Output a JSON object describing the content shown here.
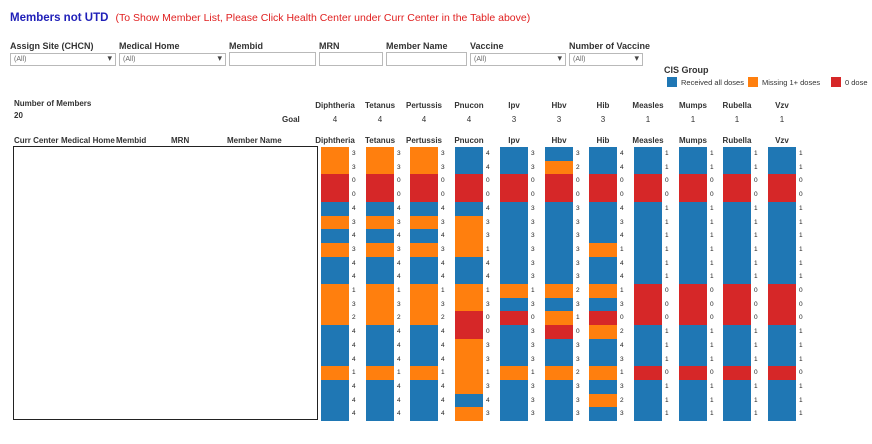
{
  "title": {
    "main": "Members not UTD",
    "note": "(To Show Member List, Please Click Health Center under Curr Center in the Table above)"
  },
  "filters": [
    {
      "label": "Assign Site (CHCN)",
      "value": "(All)",
      "type": "select"
    },
    {
      "label": "Medical Home",
      "value": "(All)",
      "type": "select"
    },
    {
      "label": "Membid",
      "value": "",
      "type": "text"
    },
    {
      "label": "MRN",
      "value": "",
      "type": "text"
    },
    {
      "label": "Member Name",
      "value": "",
      "type": "text"
    },
    {
      "label": "Vaccine",
      "value": "(All)",
      "type": "select"
    },
    {
      "label": "Number of Vaccine",
      "value": "(All)",
      "type": "select"
    }
  ],
  "legend": {
    "title": "CIS Group",
    "items": [
      {
        "label": "Received all doses",
        "color": "#1f77b4"
      },
      {
        "label": "Missing 1+ doses",
        "color": "#ff7f0e"
      },
      {
        "label": "0 dose",
        "color": "#d62728"
      }
    ]
  },
  "summary": {
    "label": "Number of Members",
    "value": "20",
    "goal_label": "Goal"
  },
  "member_columns": [
    "Curr Center",
    "Medical Home",
    "Membid",
    "MRN",
    "Member Name"
  ],
  "colors": {
    "received": "#1f77b4",
    "missing": "#ff7f0e",
    "zero": "#d62728"
  },
  "chart_data": {
    "type": "heatmap",
    "vaccines": [
      {
        "name": "Diphtheria",
        "goal": "4",
        "values": [
          3,
          3,
          0,
          0,
          4,
          3,
          4,
          3,
          4,
          4,
          1,
          3,
          2,
          4,
          4,
          4,
          1,
          4,
          4,
          4
        ],
        "groups": [
          "M",
          "M",
          "Z",
          "Z",
          "R",
          "M",
          "R",
          "M",
          "R",
          "R",
          "M",
          "M",
          "M",
          "R",
          "R",
          "R",
          "M",
          "R",
          "R",
          "R"
        ]
      },
      {
        "name": "Tetanus",
        "goal": "4",
        "values": [
          3,
          3,
          0,
          0,
          4,
          3,
          4,
          3,
          4,
          4,
          1,
          3,
          2,
          4,
          4,
          4,
          1,
          4,
          4,
          4
        ],
        "groups": [
          "M",
          "M",
          "Z",
          "Z",
          "R",
          "M",
          "R",
          "M",
          "R",
          "R",
          "M",
          "M",
          "M",
          "R",
          "R",
          "R",
          "M",
          "R",
          "R",
          "R"
        ]
      },
      {
        "name": "Pertussis",
        "goal": "4",
        "values": [
          3,
          3,
          0,
          0,
          4,
          3,
          4,
          3,
          4,
          4,
          1,
          3,
          2,
          4,
          4,
          4,
          1,
          4,
          4,
          4
        ],
        "groups": [
          "M",
          "M",
          "Z",
          "Z",
          "R",
          "M",
          "R",
          "M",
          "R",
          "R",
          "M",
          "M",
          "M",
          "R",
          "R",
          "R",
          "M",
          "R",
          "R",
          "R"
        ]
      },
      {
        "name": "Pnucon",
        "goal": "4",
        "values": [
          4,
          4,
          0,
          0,
          4,
          3,
          3,
          1,
          4,
          4,
          1,
          3,
          0,
          0,
          3,
          3,
          1,
          3,
          4,
          3
        ],
        "groups": [
          "R",
          "R",
          "Z",
          "Z",
          "R",
          "M",
          "M",
          "M",
          "R",
          "R",
          "M",
          "M",
          "Z",
          "Z",
          "M",
          "M",
          "M",
          "M",
          "R",
          "M"
        ]
      },
      {
        "name": "Ipv",
        "goal": "3",
        "values": [
          3,
          3,
          0,
          0,
          3,
          3,
          3,
          3,
          3,
          3,
          1,
          3,
          0,
          3,
          3,
          3,
          1,
          3,
          3,
          3
        ],
        "groups": [
          "R",
          "R",
          "Z",
          "Z",
          "R",
          "R",
          "R",
          "R",
          "R",
          "R",
          "M",
          "R",
          "Z",
          "R",
          "R",
          "R",
          "M",
          "R",
          "R",
          "R"
        ]
      },
      {
        "name": "Hbv",
        "goal": "3",
        "values": [
          3,
          2,
          0,
          0,
          3,
          3,
          3,
          3,
          3,
          3,
          2,
          3,
          1,
          0,
          3,
          3,
          2,
          3,
          3,
          3
        ],
        "groups": [
          "R",
          "M",
          "Z",
          "Z",
          "R",
          "R",
          "R",
          "R",
          "R",
          "R",
          "M",
          "R",
          "M",
          "Z",
          "R",
          "R",
          "M",
          "R",
          "R",
          "R"
        ]
      },
      {
        "name": "Hib",
        "goal": "3",
        "values": [
          4,
          4,
          0,
          0,
          4,
          3,
          4,
          1,
          4,
          4,
          1,
          3,
          0,
          2,
          4,
          3,
          1,
          3,
          2,
          3
        ],
        "groups": [
          "R",
          "R",
          "Z",
          "Z",
          "R",
          "R",
          "R",
          "M",
          "R",
          "R",
          "M",
          "R",
          "Z",
          "M",
          "R",
          "R",
          "M",
          "R",
          "M",
          "R"
        ]
      },
      {
        "name": "Measles",
        "goal": "1",
        "values": [
          1,
          1,
          0,
          0,
          1,
          1,
          1,
          1,
          1,
          1,
          0,
          0,
          0,
          1,
          1,
          1,
          0,
          1,
          1,
          1
        ],
        "groups": [
          "R",
          "R",
          "Z",
          "Z",
          "R",
          "R",
          "R",
          "R",
          "R",
          "R",
          "Z",
          "Z",
          "Z",
          "R",
          "R",
          "R",
          "Z",
          "R",
          "R",
          "R"
        ]
      },
      {
        "name": "Mumps",
        "goal": "1",
        "values": [
          1,
          1,
          0,
          0,
          1,
          1,
          1,
          1,
          1,
          1,
          0,
          0,
          0,
          1,
          1,
          1,
          0,
          1,
          1,
          1
        ],
        "groups": [
          "R",
          "R",
          "Z",
          "Z",
          "R",
          "R",
          "R",
          "R",
          "R",
          "R",
          "Z",
          "Z",
          "Z",
          "R",
          "R",
          "R",
          "Z",
          "R",
          "R",
          "R"
        ]
      },
      {
        "name": "Rubella",
        "goal": "1",
        "values": [
          1,
          1,
          0,
          0,
          1,
          1,
          1,
          1,
          1,
          1,
          0,
          0,
          0,
          1,
          1,
          1,
          0,
          1,
          1,
          1
        ],
        "groups": [
          "R",
          "R",
          "Z",
          "Z",
          "R",
          "R",
          "R",
          "R",
          "R",
          "R",
          "Z",
          "Z",
          "Z",
          "R",
          "R",
          "R",
          "Z",
          "R",
          "R",
          "R"
        ]
      },
      {
        "name": "Vzv",
        "goal": "1",
        "values": [
          1,
          1,
          0,
          0,
          1,
          1,
          1,
          1,
          1,
          1,
          0,
          0,
          0,
          1,
          1,
          1,
          0,
          1,
          1,
          1
        ],
        "groups": [
          "R",
          "R",
          "Z",
          "Z",
          "R",
          "R",
          "R",
          "R",
          "R",
          "R",
          "Z",
          "Z",
          "Z",
          "R",
          "R",
          "R",
          "Z",
          "R",
          "R",
          "R"
        ]
      }
    ]
  }
}
